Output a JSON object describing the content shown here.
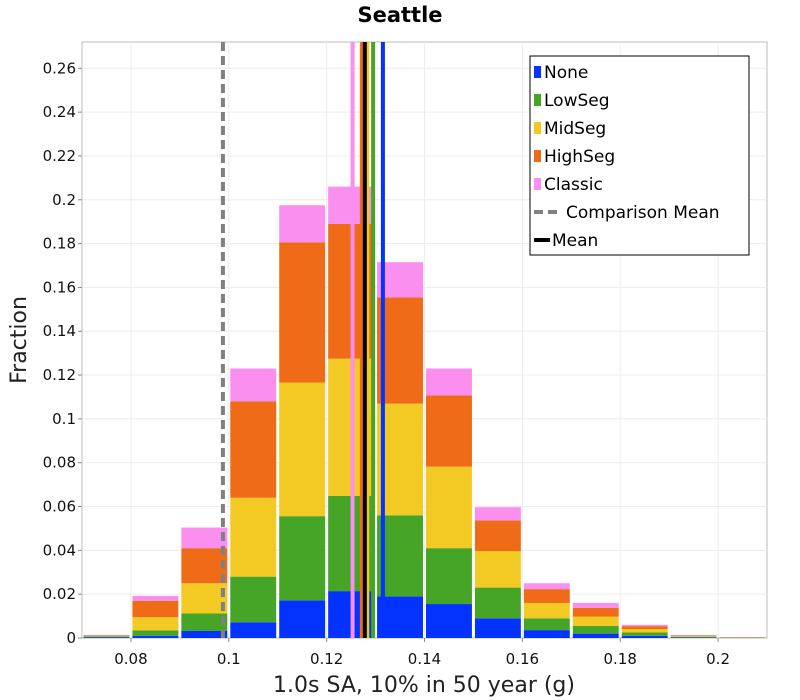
{
  "chart_data": {
    "type": "bar",
    "stacked": true,
    "title": "Seattle",
    "xlabel": "1.0s SA, 10% in 50 year (g)",
    "ylabel": "Fraction",
    "xlim": [
      0.07,
      0.21
    ],
    "ylim": [
      0,
      0.272
    ],
    "bin_width": 0.01,
    "grid": true,
    "legend_position": "top-right",
    "x_ticks": [
      {
        "value": 0.08,
        "label": "0.08"
      },
      {
        "value": 0.1,
        "label": "0.1"
      },
      {
        "value": 0.12,
        "label": "0.12"
      },
      {
        "value": 0.14,
        "label": "0.14"
      },
      {
        "value": 0.16,
        "label": "0.16"
      },
      {
        "value": 0.18,
        "label": "0.18"
      },
      {
        "value": 0.2,
        "label": "0.2"
      }
    ],
    "y_ticks": [
      {
        "value": 0,
        "label": "0"
      },
      {
        "value": 0.02,
        "label": "0.02"
      },
      {
        "value": 0.04,
        "label": "0.04"
      },
      {
        "value": 0.06,
        "label": "0.06"
      },
      {
        "value": 0.08,
        "label": "0.08"
      },
      {
        "value": 0.1,
        "label": "0.1"
      },
      {
        "value": 0.12,
        "label": "0.12"
      },
      {
        "value": 0.14,
        "label": "0.14"
      },
      {
        "value": 0.16,
        "label": "0.16"
      },
      {
        "value": 0.18,
        "label": "0.18"
      },
      {
        "value": 0.2,
        "label": "0.2"
      },
      {
        "value": 0.22,
        "label": "0.22"
      },
      {
        "value": 0.24,
        "label": "0.24"
      },
      {
        "value": 0.26,
        "label": "0.26"
      }
    ],
    "bin_centers": [
      0.075,
      0.085,
      0.095,
      0.105,
      0.115,
      0.125,
      0.135,
      0.145,
      0.155,
      0.165,
      0.175,
      0.185,
      0.195,
      0.205
    ],
    "series": [
      {
        "name": "None",
        "color": "#0433ff",
        "values": [
          0.0004,
          0.001,
          0.0032,
          0.0072,
          0.0172,
          0.0214,
          0.019,
          0.0155,
          0.009,
          0.0036,
          0.002,
          0.001,
          0.0003,
          0.0001
        ]
      },
      {
        "name": "LowSeg",
        "color": "#46a527",
        "values": [
          0.0003,
          0.0025,
          0.008,
          0.0208,
          0.0384,
          0.0434,
          0.037,
          0.0255,
          0.014,
          0.0054,
          0.0035,
          0.0015,
          0.0003,
          0.0001
        ]
      },
      {
        "name": "MidSeg",
        "color": "#f3c923",
        "values": [
          0.0003,
          0.006,
          0.0138,
          0.036,
          0.061,
          0.0627,
          0.051,
          0.0372,
          0.0167,
          0.007,
          0.0043,
          0.0016,
          0.0003,
          0.0001
        ]
      },
      {
        "name": "HighSeg",
        "color": "#f06b17",
        "values": [
          0.0003,
          0.0075,
          0.016,
          0.044,
          0.064,
          0.0615,
          0.0485,
          0.0325,
          0.014,
          0.0063,
          0.004,
          0.0013,
          0.0003,
          0.0001
        ]
      },
      {
        "name": "Classic",
        "color": "#fb8ff0",
        "values": [
          0.0001,
          0.0022,
          0.0094,
          0.015,
          0.0169,
          0.017,
          0.016,
          0.0123,
          0.006,
          0.0027,
          0.0022,
          0.0006,
          0.0001,
          0.0
        ]
      }
    ],
    "mean_lines": [
      {
        "name": "None",
        "color": "#0433ff",
        "x": 0.1315,
        "dashed": false
      },
      {
        "name": "LowSeg",
        "color": "#46a527",
        "x": 0.1295,
        "dashed": false
      },
      {
        "name": "MidSeg",
        "color": "#f3c923",
        "x": 0.1283,
        "dashed": false
      },
      {
        "name": "HighSeg",
        "color": "#f06b17",
        "x": 0.1272,
        "dashed": false
      },
      {
        "name": "Classic",
        "color": "#fb8ff0",
        "x": 0.1253,
        "dashed": false
      },
      {
        "name": "Comparison Mean",
        "color": "#808080",
        "x": 0.0988,
        "dashed": true
      },
      {
        "name": "Mean",
        "color": "#000000",
        "x": 0.1278,
        "dashed": false
      }
    ],
    "legend": [
      {
        "label": "None",
        "color": "#0433ff",
        "kind": "box"
      },
      {
        "label": "LowSeg",
        "color": "#46a527",
        "kind": "box"
      },
      {
        "label": "MidSeg",
        "color": "#f3c923",
        "kind": "box"
      },
      {
        "label": "HighSeg",
        "color": "#f06b17",
        "kind": "box"
      },
      {
        "label": "Classic",
        "color": "#fb8ff0",
        "kind": "box"
      },
      {
        "label": "Comparison Mean",
        "color": "#808080",
        "kind": "dashed-line"
      },
      {
        "label": "Mean",
        "color": "#000000",
        "kind": "line"
      }
    ]
  }
}
